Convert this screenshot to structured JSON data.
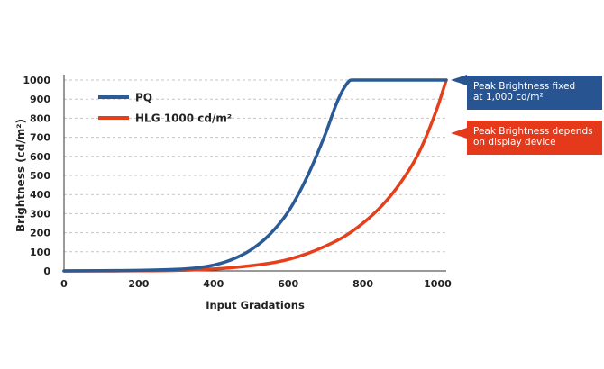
{
  "chart_data": {
    "type": "line",
    "xlabel": "Input Gradations",
    "ylabel": "Brightness (cd/m²)",
    "xlim": [
      0,
      1023
    ],
    "ylim": [
      0,
      1000
    ],
    "x_ticks": [
      0,
      200,
      400,
      600,
      800,
      1000
    ],
    "y_ticks": [
      0,
      100,
      200,
      300,
      400,
      500,
      600,
      700,
      800,
      900,
      1000
    ],
    "grid": "horizontal dashed",
    "legend_position": "top-left",
    "series": [
      {
        "name": "PQ",
        "color": "#2a5b96",
        "x": [
          0,
          100,
          200,
          300,
          350,
          400,
          450,
          500,
          550,
          600,
          650,
          700,
          730,
          750,
          769,
          800,
          900,
          1000,
          1023
        ],
        "y": [
          0,
          1,
          3,
          8,
          15,
          30,
          60,
          110,
          190,
          310,
          490,
          720,
          880,
          960,
          1000,
          1000,
          1000,
          1000,
          1000
        ]
      },
      {
        "name": "HLG 1000 cd/m²",
        "color": "#e5401b",
        "x": [
          0,
          100,
          200,
          300,
          400,
          450,
          500,
          550,
          600,
          650,
          700,
          750,
          800,
          850,
          900,
          950,
          1000,
          1023
        ],
        "y": [
          0,
          0,
          1,
          3,
          10,
          17,
          27,
          40,
          60,
          90,
          130,
          180,
          250,
          340,
          460,
          620,
          860,
          1000
        ]
      }
    ],
    "annotations": [
      {
        "text": "Peak Brightness fixed at 1,000 cd/m²",
        "color": "#285592",
        "points_to": "PQ"
      },
      {
        "text": "Peak Brightness depends on display device",
        "color": "#e4391b",
        "points_to": "HLG 1000 cd/m²"
      }
    ]
  }
}
